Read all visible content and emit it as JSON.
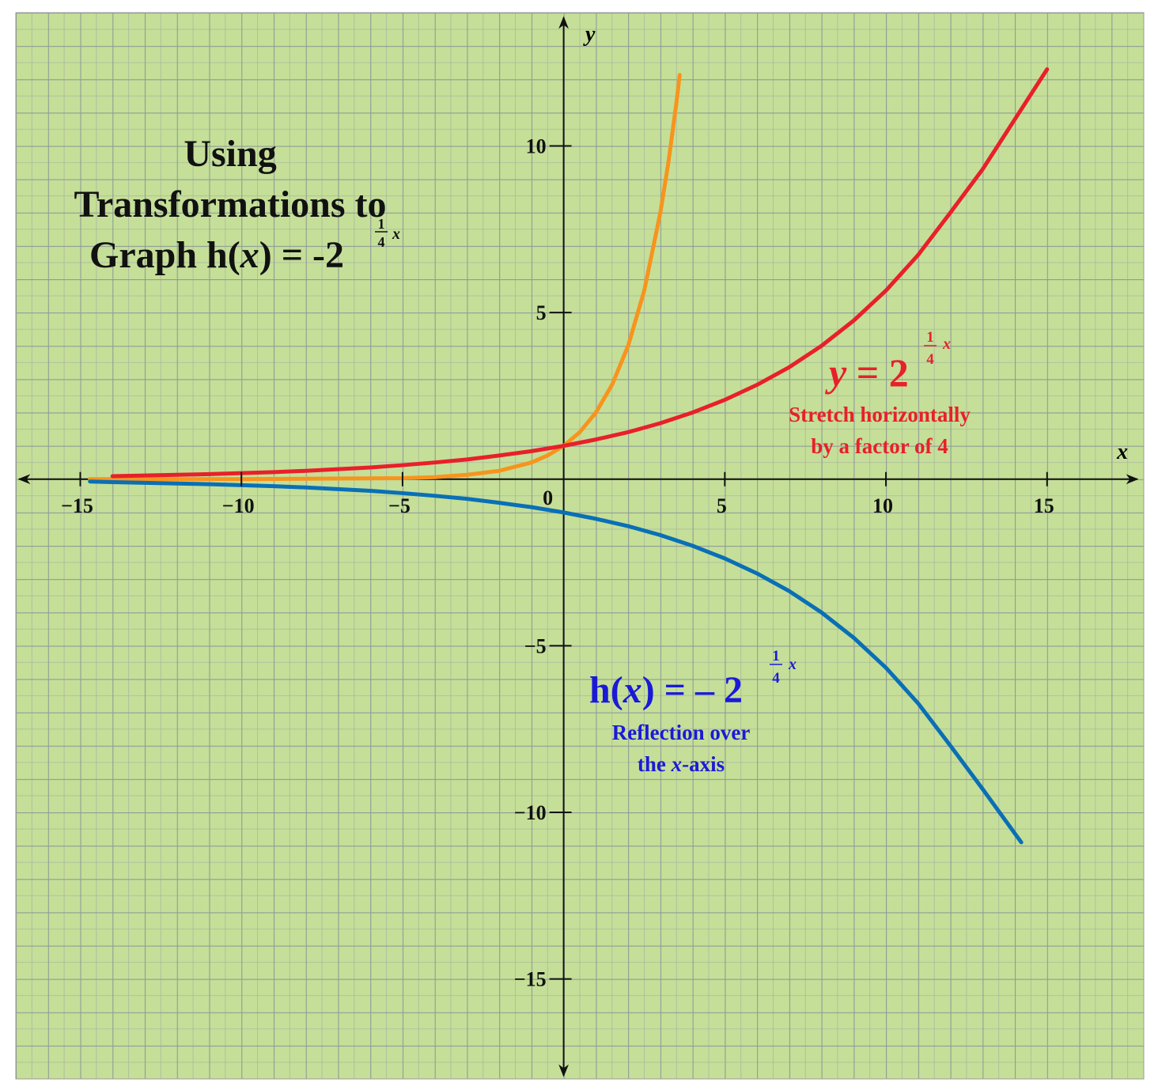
{
  "chart_data": {
    "type": "line",
    "title": {
      "line1": "Using",
      "line2": "Transformations to",
      "line3": [
        "Graph h(",
        "x",
        ") = -2"
      ],
      "exponent": [
        "1",
        "4",
        "x"
      ]
    },
    "x_label": "x",
    "y_label": "y",
    "xlim": [
      -17,
      18
    ],
    "ylim": [
      -18,
      14
    ],
    "xticks": [
      {
        "value": -15,
        "label": "−15"
      },
      {
        "value": -10,
        "label": "−10"
      },
      {
        "value": -5,
        "label": "−5"
      },
      0,
      5,
      10,
      15
    ],
    "yticks": [
      {
        "value": -15,
        "label": "−15"
      },
      {
        "value": -10,
        "label": "−10"
      },
      {
        "value": -5,
        "label": "−5"
      },
      5,
      10
    ],
    "series": [
      {
        "color": "#f7941d",
        "x": [
          -14.7,
          -10,
          -5,
          -4,
          -3,
          -2,
          -1,
          -0.5,
          0,
          0.5,
          1,
          1.5,
          2,
          2.5,
          3,
          3.25,
          3.5,
          3.6
        ],
        "values": [
          0,
          0,
          0.03,
          0.06,
          0.13,
          0.25,
          0.5,
          0.71,
          1,
          1.41,
          2,
          2.83,
          4,
          5.66,
          8,
          9.51,
          11.31,
          12.13
        ]
      },
      {
        "color": "#e8202a",
        "x": [
          -14,
          -13,
          -12,
          -11,
          -10,
          -9,
          -8,
          -7,
          -6,
          -5,
          -4,
          -3,
          -2,
          -1,
          0,
          1,
          2,
          3,
          4,
          5,
          6,
          7,
          8,
          9,
          10,
          11,
          12,
          13,
          14,
          15
        ],
        "values": [
          0.09,
          0.11,
          0.13,
          0.15,
          0.18,
          0.21,
          0.25,
          0.3,
          0.35,
          0.42,
          0.5,
          0.59,
          0.71,
          0.84,
          1,
          1.19,
          1.41,
          1.68,
          2,
          2.38,
          2.83,
          3.36,
          4,
          4.76,
          5.66,
          6.73,
          8,
          9.3,
          10.8,
          12.3
        ]
      },
      {
        "color": "#0a6fb5",
        "x": [
          -14.7,
          -14,
          -13,
          -12,
          -11,
          -10,
          -9,
          -8,
          -7,
          -6,
          -5,
          -4,
          -3,
          -2,
          -1,
          0,
          1,
          2,
          3,
          4,
          5,
          6,
          7,
          8,
          9,
          10,
          11,
          12,
          13,
          14.2
        ],
        "values": [
          -0.07,
          -0.09,
          -0.11,
          -0.13,
          -0.15,
          -0.18,
          -0.21,
          -0.25,
          -0.3,
          -0.35,
          -0.42,
          -0.5,
          -0.59,
          -0.71,
          -0.84,
          -1,
          -1.19,
          -1.41,
          -1.68,
          -2,
          -2.38,
          -2.83,
          -3.36,
          -4,
          -4.76,
          -5.66,
          -6.73,
          -8,
          -9.3,
          -10.9
        ]
      }
    ],
    "annotations": [
      {
        "text": [
          "y",
          " = 2"
        ],
        "exponent": [
          "1",
          "4",
          "x"
        ],
        "notes": [
          [
            "Stretch horizontally"
          ],
          [
            "by a factor of 4"
          ]
        ],
        "color": "#e8202a"
      },
      {
        "text": [
          "h(",
          "x",
          ") = – 2"
        ],
        "exponent": [
          "1",
          "4",
          "x"
        ],
        "notes": [
          [
            "Reflection over"
          ],
          [
            "the ",
            "x",
            "-axis"
          ]
        ],
        "color": "#1a1ad6"
      }
    ]
  }
}
